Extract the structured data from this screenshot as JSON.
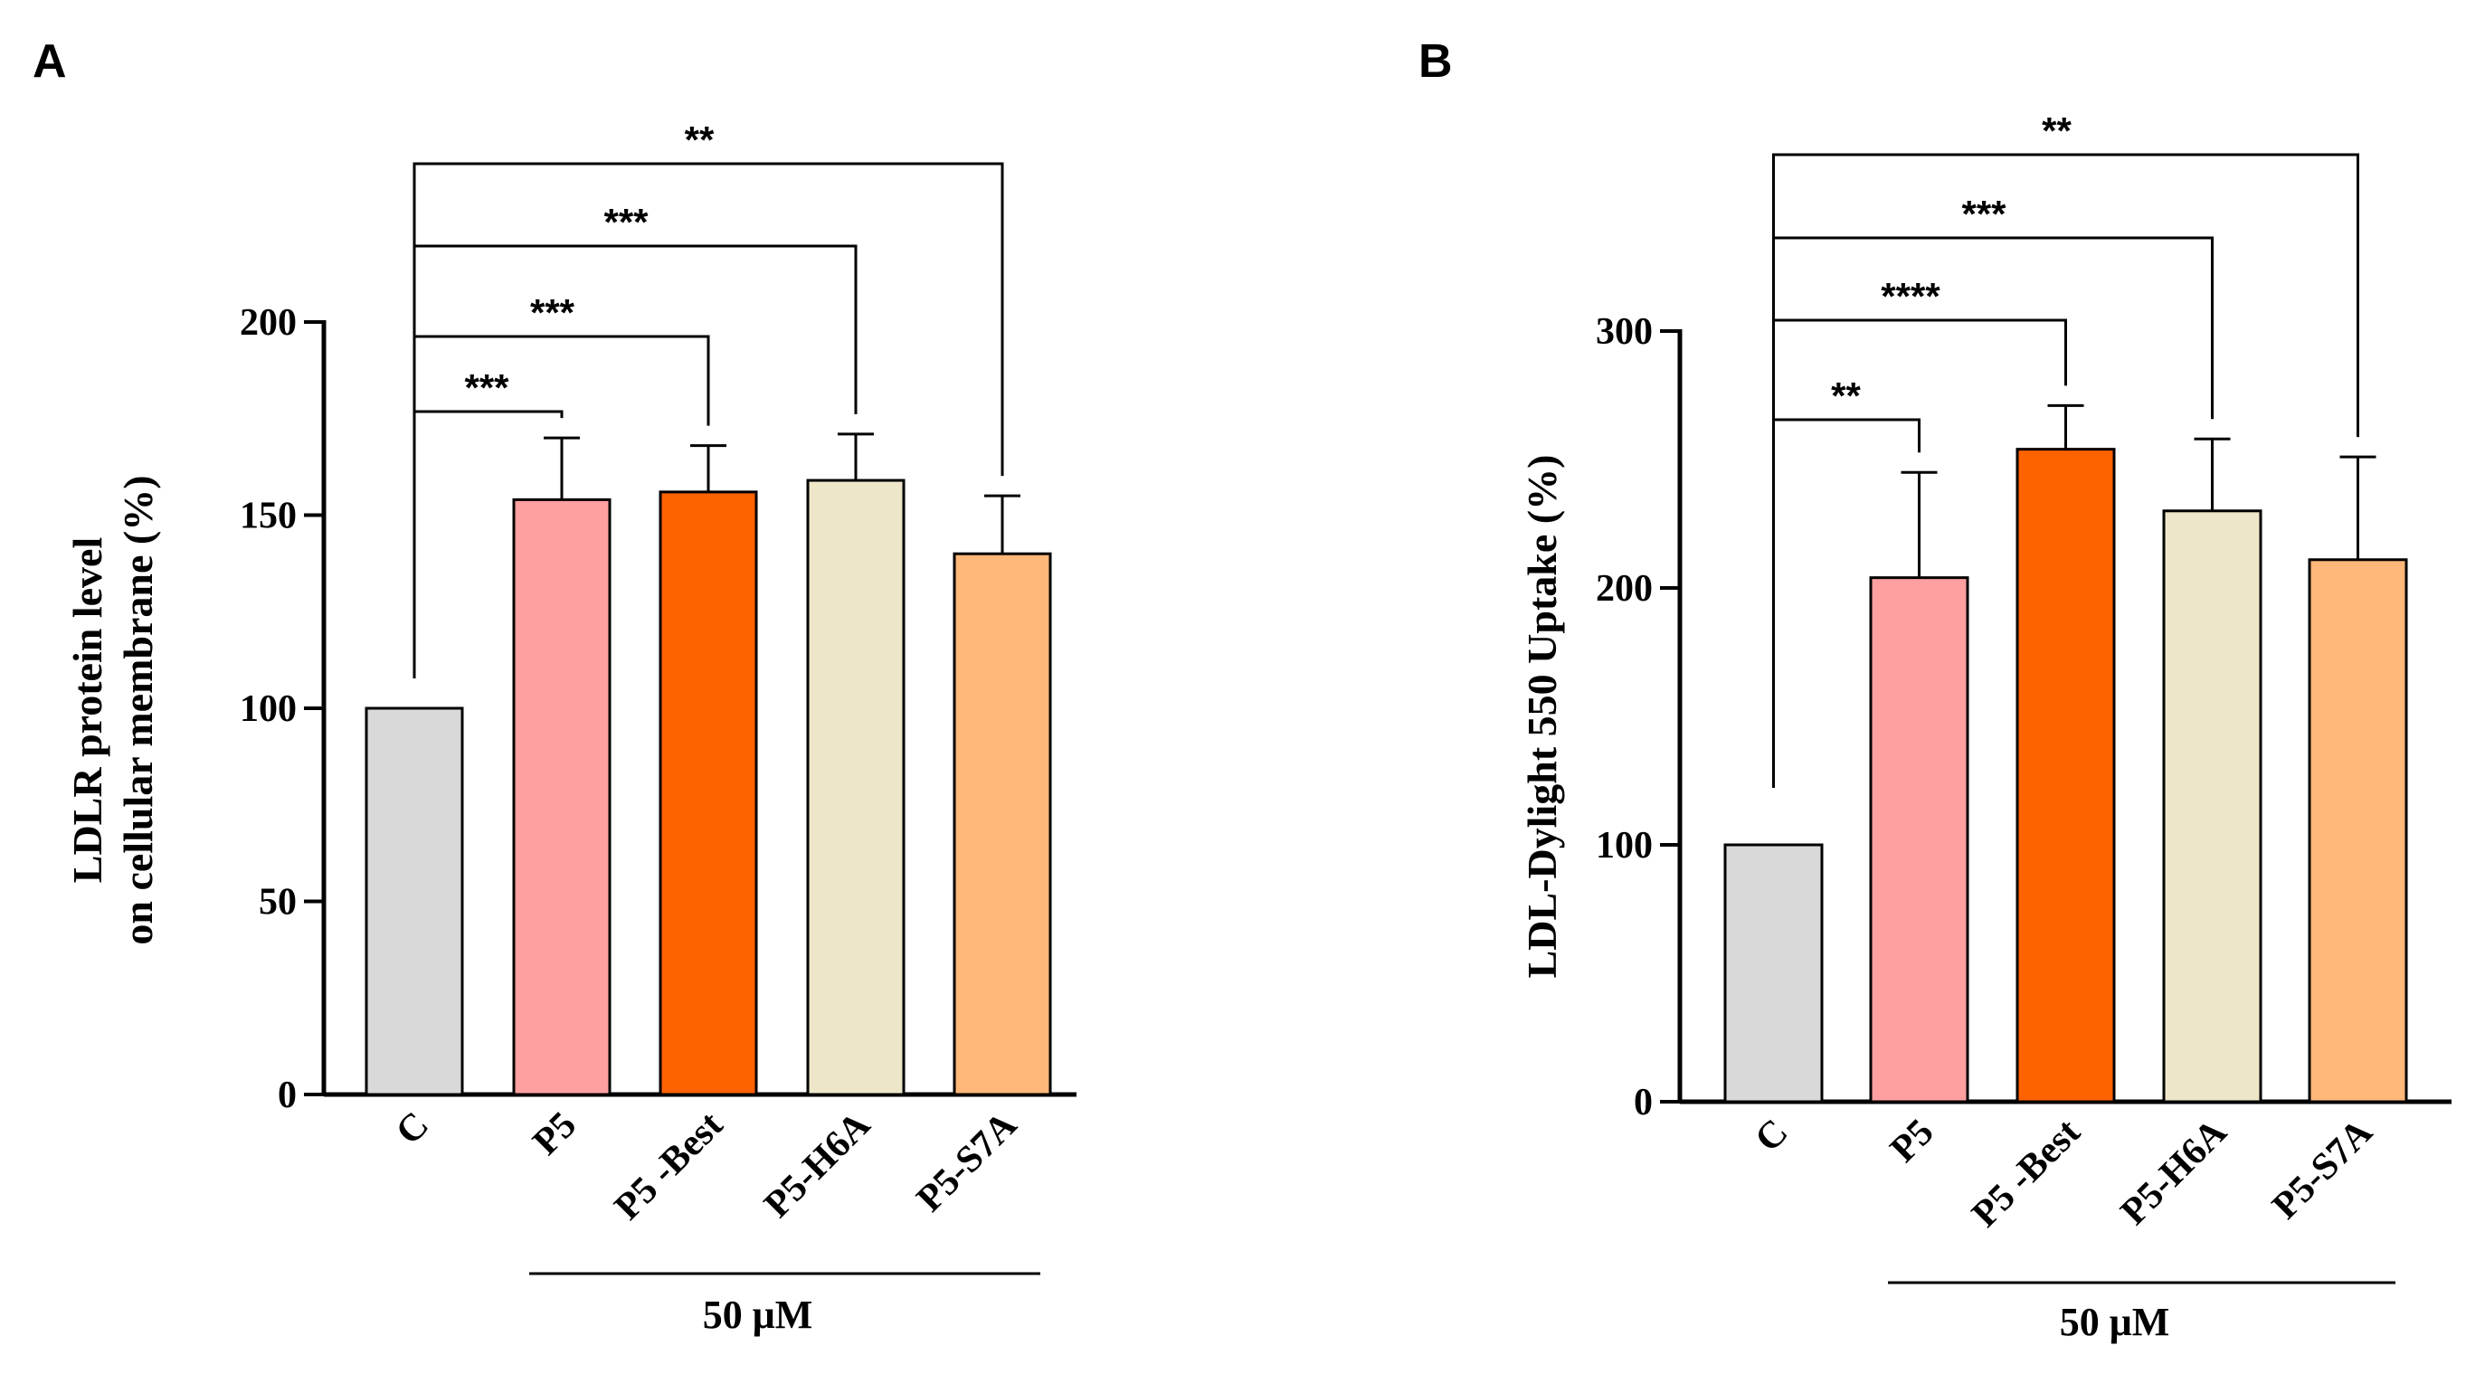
{
  "colors": {
    "C": "#d9d9d9",
    "P5": "#ffa0a0",
    "P5 -Best": "#ff6200",
    "P5-H6A": "#ede6c8",
    "P5-S7A": "#ffb77a",
    "stroke": "#000000"
  },
  "chart_data": [
    {
      "type": "bar",
      "panel": "A",
      "categories": [
        "C",
        "P5",
        "P5 -Best",
        "P5-H6A",
        "P5-S7A"
      ],
      "values": [
        100,
        154,
        156,
        159,
        140
      ],
      "errors": [
        0,
        16,
        12,
        12,
        15
      ],
      "title": "",
      "xlabel": "",
      "ylabel_lines": [
        "LDLR protein level",
        "on cellular membrane  (%)"
      ],
      "ylim": [
        0,
        200
      ],
      "yticks": [
        0,
        50,
        100,
        150,
        200
      ],
      "group_label": "50 μM",
      "significance": [
        {
          "from": "C",
          "to": "P5",
          "label": "***"
        },
        {
          "from": "C",
          "to": "P5 -Best",
          "label": "***"
        },
        {
          "from": "C",
          "to": "P5-H6A",
          "label": "***"
        },
        {
          "from": "C",
          "to": "P5-S7A",
          "label": "**"
        }
      ]
    },
    {
      "type": "bar",
      "panel": "B",
      "categories": [
        "C",
        "P5",
        "P5 -Best",
        "P5-H6A",
        "P5-S7A"
      ],
      "values": [
        100,
        204,
        254,
        230,
        211
      ],
      "errors": [
        0,
        41,
        17,
        28,
        40
      ],
      "title": "",
      "xlabel": "",
      "ylabel_lines": [
        "LDL-Dylight 550 Uptake (%)"
      ],
      "ylim": [
        0,
        300
      ],
      "yticks": [
        0,
        100,
        200,
        300
      ],
      "group_label": "50 μM",
      "significance": [
        {
          "from": "C",
          "to": "P5",
          "label": "**"
        },
        {
          "from": "C",
          "to": "P5 -Best",
          "label": "****"
        },
        {
          "from": "C",
          "to": "P5-H6A",
          "label": "***"
        },
        {
          "from": "C",
          "to": "P5-S7A",
          "label": "**"
        }
      ]
    }
  ]
}
